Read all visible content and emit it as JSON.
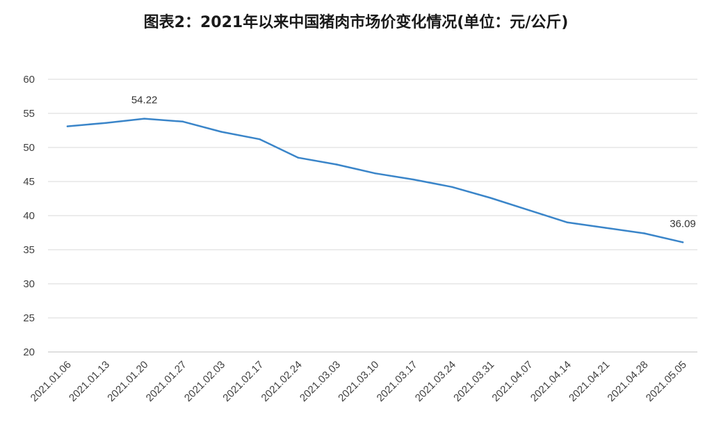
{
  "chart_data": {
    "type": "line",
    "title": "图表2：2021年以来中国猪肉市场价变化情况(单位：元/公斤)",
    "xlabel": "",
    "ylabel": "",
    "ylim": [
      20,
      60
    ],
    "yticks": [
      20,
      25,
      30,
      35,
      40,
      45,
      50,
      55,
      60
    ],
    "grid": true,
    "legend": "none",
    "categories": [
      "2021.01.06",
      "2021.01.13",
      "2021.01.20",
      "2021.01.27",
      "2021.02.03",
      "2021.02.17",
      "2021.02.24",
      "2021.03.03",
      "2021.03.10",
      "2021.03.17",
      "2021.03.24",
      "2021.03.31",
      "2021.04.07",
      "2021.04.14",
      "2021.04.21",
      "2021.04.28",
      "2021.05.05"
    ],
    "series": [
      {
        "values": [
          53.1,
          53.6,
          54.22,
          53.8,
          52.3,
          51.2,
          48.5,
          47.5,
          46.2,
          45.3,
          44.2,
          42.6,
          40.8,
          39.0,
          38.2,
          37.4,
          36.09
        ]
      }
    ],
    "data_labels": [
      {
        "index": 2,
        "text": "54.22"
      },
      {
        "index": 16,
        "text": "36.09"
      }
    ],
    "colors": {
      "line": "#3a85c9",
      "grid": "#d9d9d9",
      "axis": "#bfbfbf"
    }
  }
}
